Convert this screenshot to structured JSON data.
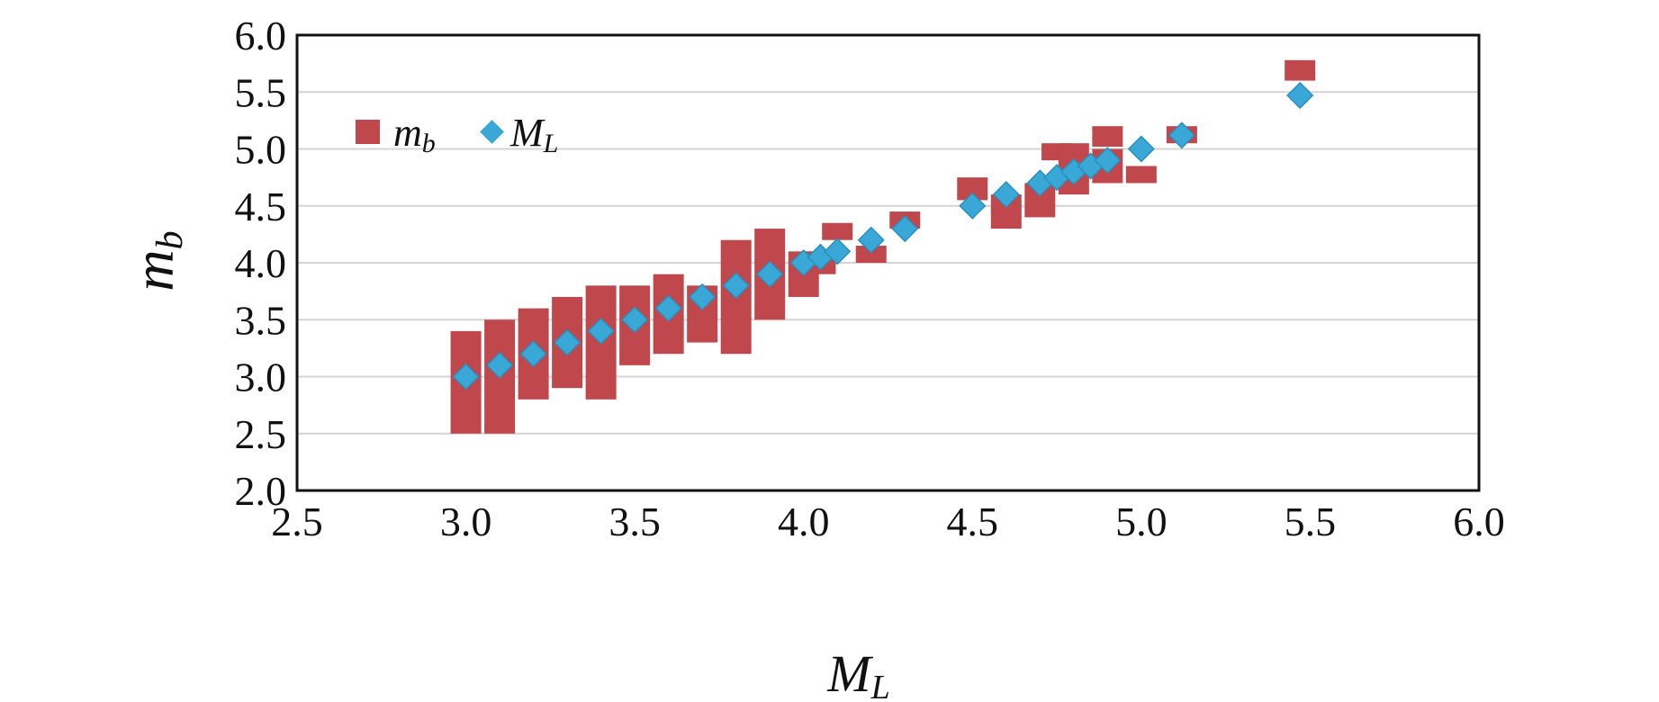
{
  "chart_data": {
    "type": "scatter",
    "title": "",
    "xlabel": "M",
    "xlabel_sub": "L",
    "ylabel": "m",
    "ylabel_sub": "b",
    "xlim": [
      2.5,
      6.0
    ],
    "ylim": [
      2.0,
      6.0
    ],
    "x_ticks": [
      "2.5",
      "3.0",
      "3.5",
      "4.0",
      "4.5",
      "5.0",
      "5.5",
      "6.0"
    ],
    "y_ticks": [
      "2.0",
      "2.5",
      "3.0",
      "3.5",
      "4.0",
      "4.5",
      "5.0",
      "5.5",
      "6.0"
    ],
    "grid": "horizontal",
    "legend_position": "top-left",
    "colors": {
      "mb": "#c0474b",
      "ML": "#3aa8d6",
      "grid": "#d4d4d4"
    },
    "series": [
      {
        "name": "m",
        "name_sub": "b",
        "marker": "square",
        "color": "#c0474b",
        "ranges": [
          {
            "x": 3.0,
            "low": 2.5,
            "high": 3.4
          },
          {
            "x": 3.1,
            "low": 2.5,
            "high": 3.5
          },
          {
            "x": 3.2,
            "low": 2.8,
            "high": 3.6
          },
          {
            "x": 3.3,
            "low": 2.9,
            "high": 3.7
          },
          {
            "x": 3.4,
            "low": 2.8,
            "high": 3.8
          },
          {
            "x": 3.5,
            "low": 3.1,
            "high": 3.8
          },
          {
            "x": 3.6,
            "low": 3.2,
            "high": 3.9
          },
          {
            "x": 3.7,
            "low": 3.3,
            "high": 3.8
          },
          {
            "x": 3.8,
            "low": 3.2,
            "high": 4.2
          },
          {
            "x": 3.9,
            "low": 3.5,
            "high": 4.3
          },
          {
            "x": 4.0,
            "low": 3.7,
            "high": 4.1
          },
          {
            "x": 4.05,
            "low": 3.9,
            "high": 4.1
          },
          {
            "x": 4.1,
            "low": 4.2,
            "high": 4.35
          },
          {
            "x": 4.2,
            "low": 4.0,
            "high": 4.15
          },
          {
            "x": 4.3,
            "low": 4.3,
            "high": 4.45
          },
          {
            "x": 4.5,
            "low": 4.55,
            "high": 4.75
          },
          {
            "x": 4.6,
            "low": 4.3,
            "high": 4.6
          },
          {
            "x": 4.7,
            "low": 4.4,
            "high": 4.7
          },
          {
            "x": 4.75,
            "low": 4.9,
            "high": 5.05
          },
          {
            "x": 4.8,
            "low": 4.6,
            "high": 5.05
          },
          {
            "x": 4.9,
            "low": 4.7,
            "high": 5.0
          },
          {
            "x": 4.9,
            "low": 5.02,
            "high": 5.2
          },
          {
            "x": 5.0,
            "low": 4.7,
            "high": 4.85
          },
          {
            "x": 5.12,
            "low": 5.05,
            "high": 5.2
          },
          {
            "x": 5.47,
            "low": 5.6,
            "high": 5.78
          }
        ]
      },
      {
        "name": "M",
        "name_sub": "L",
        "marker": "diamond",
        "color": "#3aa8d6",
        "points": [
          {
            "x": 3.0,
            "y": 3.0
          },
          {
            "x": 3.1,
            "y": 3.1
          },
          {
            "x": 3.2,
            "y": 3.2
          },
          {
            "x": 3.3,
            "y": 3.3
          },
          {
            "x": 3.4,
            "y": 3.4
          },
          {
            "x": 3.5,
            "y": 3.5
          },
          {
            "x": 3.6,
            "y": 3.6
          },
          {
            "x": 3.7,
            "y": 3.7
          },
          {
            "x": 3.8,
            "y": 3.8
          },
          {
            "x": 3.9,
            "y": 3.9
          },
          {
            "x": 4.0,
            "y": 4.0
          },
          {
            "x": 4.05,
            "y": 4.05
          },
          {
            "x": 4.1,
            "y": 4.1
          },
          {
            "x": 4.2,
            "y": 4.2
          },
          {
            "x": 4.3,
            "y": 4.3
          },
          {
            "x": 4.5,
            "y": 4.5
          },
          {
            "x": 4.6,
            "y": 4.6
          },
          {
            "x": 4.7,
            "y": 4.7
          },
          {
            "x": 4.75,
            "y": 4.75
          },
          {
            "x": 4.8,
            "y": 4.8
          },
          {
            "x": 4.85,
            "y": 4.85
          },
          {
            "x": 4.9,
            "y": 4.9
          },
          {
            "x": 5.0,
            "y": 5.0
          },
          {
            "x": 5.12,
            "y": 5.12
          },
          {
            "x": 5.47,
            "y": 5.47
          }
        ]
      }
    ]
  }
}
